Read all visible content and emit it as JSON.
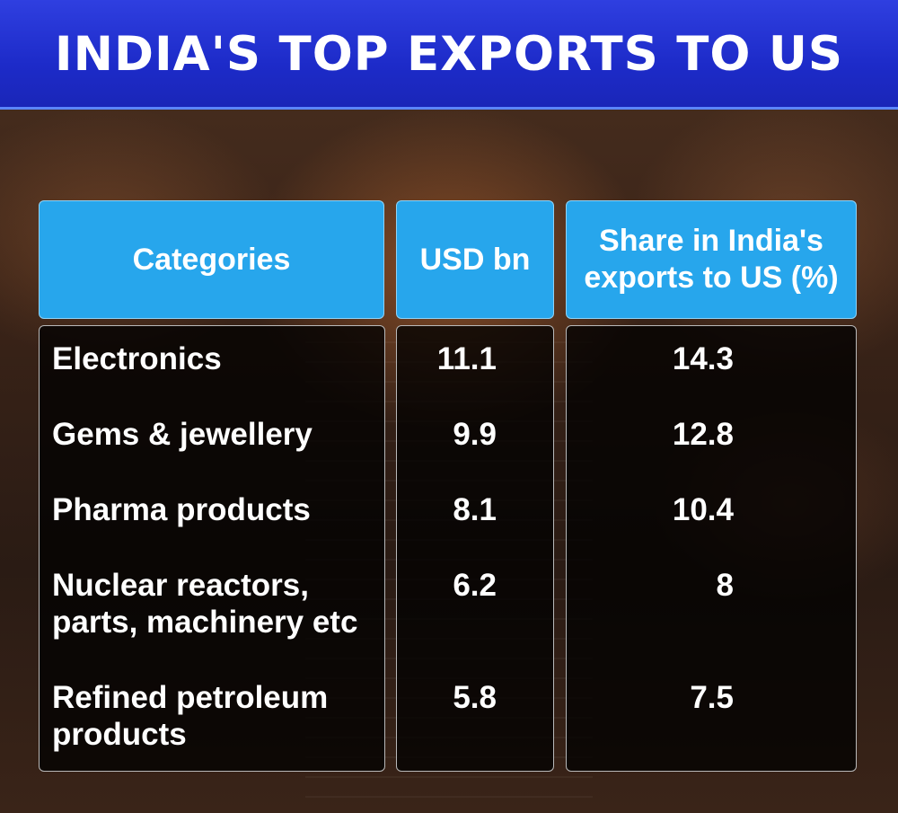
{
  "title": "INDIA'S TOP EXPORTS TO US",
  "chart_data": {
    "type": "table",
    "columns": [
      "Categories",
      "USD bn",
      "Share in India's exports to US (%)"
    ],
    "rows": [
      {
        "category": "Electronics",
        "usd_bn": "11.1",
        "share": "14.3"
      },
      {
        "category": "Gems & jewellery",
        "usd_bn": "9.9",
        "share": "12.8"
      },
      {
        "category": "Pharma products",
        "usd_bn": "8.1",
        "share": "10.4"
      },
      {
        "category": "Nuclear reactors, parts, machinery etc",
        "usd_bn": "6.2",
        "share": "8"
      },
      {
        "category": "Refined petroleum products",
        "usd_bn": "5.8",
        "share": "7.5"
      }
    ]
  },
  "colors": {
    "title_bar": "#1d2bc9",
    "header_cells": "#27a6ec",
    "text": "#ffffff"
  }
}
